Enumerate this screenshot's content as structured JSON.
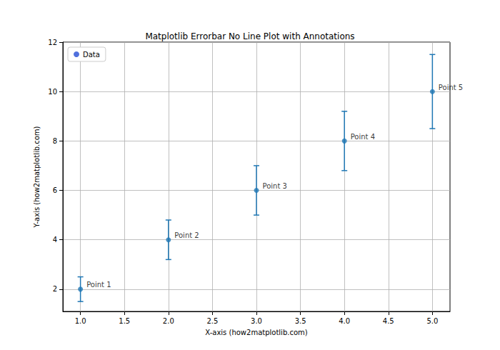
{
  "chart_data": {
    "type": "errorbar",
    "title": "Matplotlib Errorbar No Line Plot with Annotations",
    "x_label": "X-axis (how2matplotlib.com)",
    "y_label": "Y-axis (how2matplotlib.com)",
    "x": [
      1,
      2,
      3,
      4,
      5
    ],
    "series": [
      {
        "name": "Data",
        "color": "#1f77b4",
        "marker": "circle",
        "line_style": "none",
        "values": [
          2,
          4,
          6,
          8,
          10
        ],
        "errors": [
          0.5,
          0.8,
          1,
          1.2,
          1.5
        ]
      }
    ],
    "annotations": [
      "Point 1",
      "Point 2",
      "Point 3",
      "Point 4",
      "Point 5"
    ],
    "xlim": [
      0.8,
      5.2
    ],
    "xticks": [
      {
        "value": 1,
        "label": "1.0"
      },
      1.5,
      {
        "value": 2,
        "label": "2.0"
      },
      2.5,
      {
        "value": 3,
        "label": "3.0"
      },
      3.5,
      {
        "value": 4,
        "label": "4.0"
      },
      4.5,
      {
        "value": 5,
        "label": "5.0"
      }
    ],
    "ylim": [
      1.1,
      12
    ],
    "yticks": [
      2,
      4,
      6,
      8,
      10,
      12
    ],
    "grid": true,
    "legend": "upper left"
  }
}
